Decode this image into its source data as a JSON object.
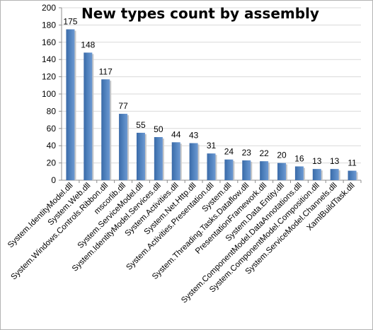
{
  "chart_data": {
    "type": "bar",
    "title": "New types count by assembly",
    "xlabel": "",
    "ylabel": "",
    "ylim": [
      0,
      200
    ],
    "yticks": [
      0,
      20,
      40,
      60,
      80,
      100,
      120,
      140,
      160,
      180,
      200
    ],
    "grid": true,
    "legend": "none",
    "bar_color": "#4f81bd",
    "categories": [
      "System.IdentityModel.dll",
      "System.Web.dll",
      "System.Windows.Controls.Ribbon.dll",
      "mscorlib.dll",
      "System.ServiceModel.dll",
      "System.IdentityModel.Services.dll",
      "System.Activities.dll",
      "System.Net.Http.dll",
      "System.Activities.Presentation.dll",
      "System.dll",
      "System.Threading.Tasks.Dataflow.dll",
      "PresentationFramework.dll",
      "System.Data.Entity.dll",
      "System.ComponentModel.DataAnnotations.dll",
      "System.ComponentModel.Composition.dll",
      "System.ServiceModel.Channels.dll",
      "XamlBuildTask.dll"
    ],
    "values": [
      175,
      148,
      117,
      77,
      55,
      50,
      44,
      43,
      31,
      24,
      23,
      22,
      20,
      16,
      13,
      13,
      11
    ]
  }
}
